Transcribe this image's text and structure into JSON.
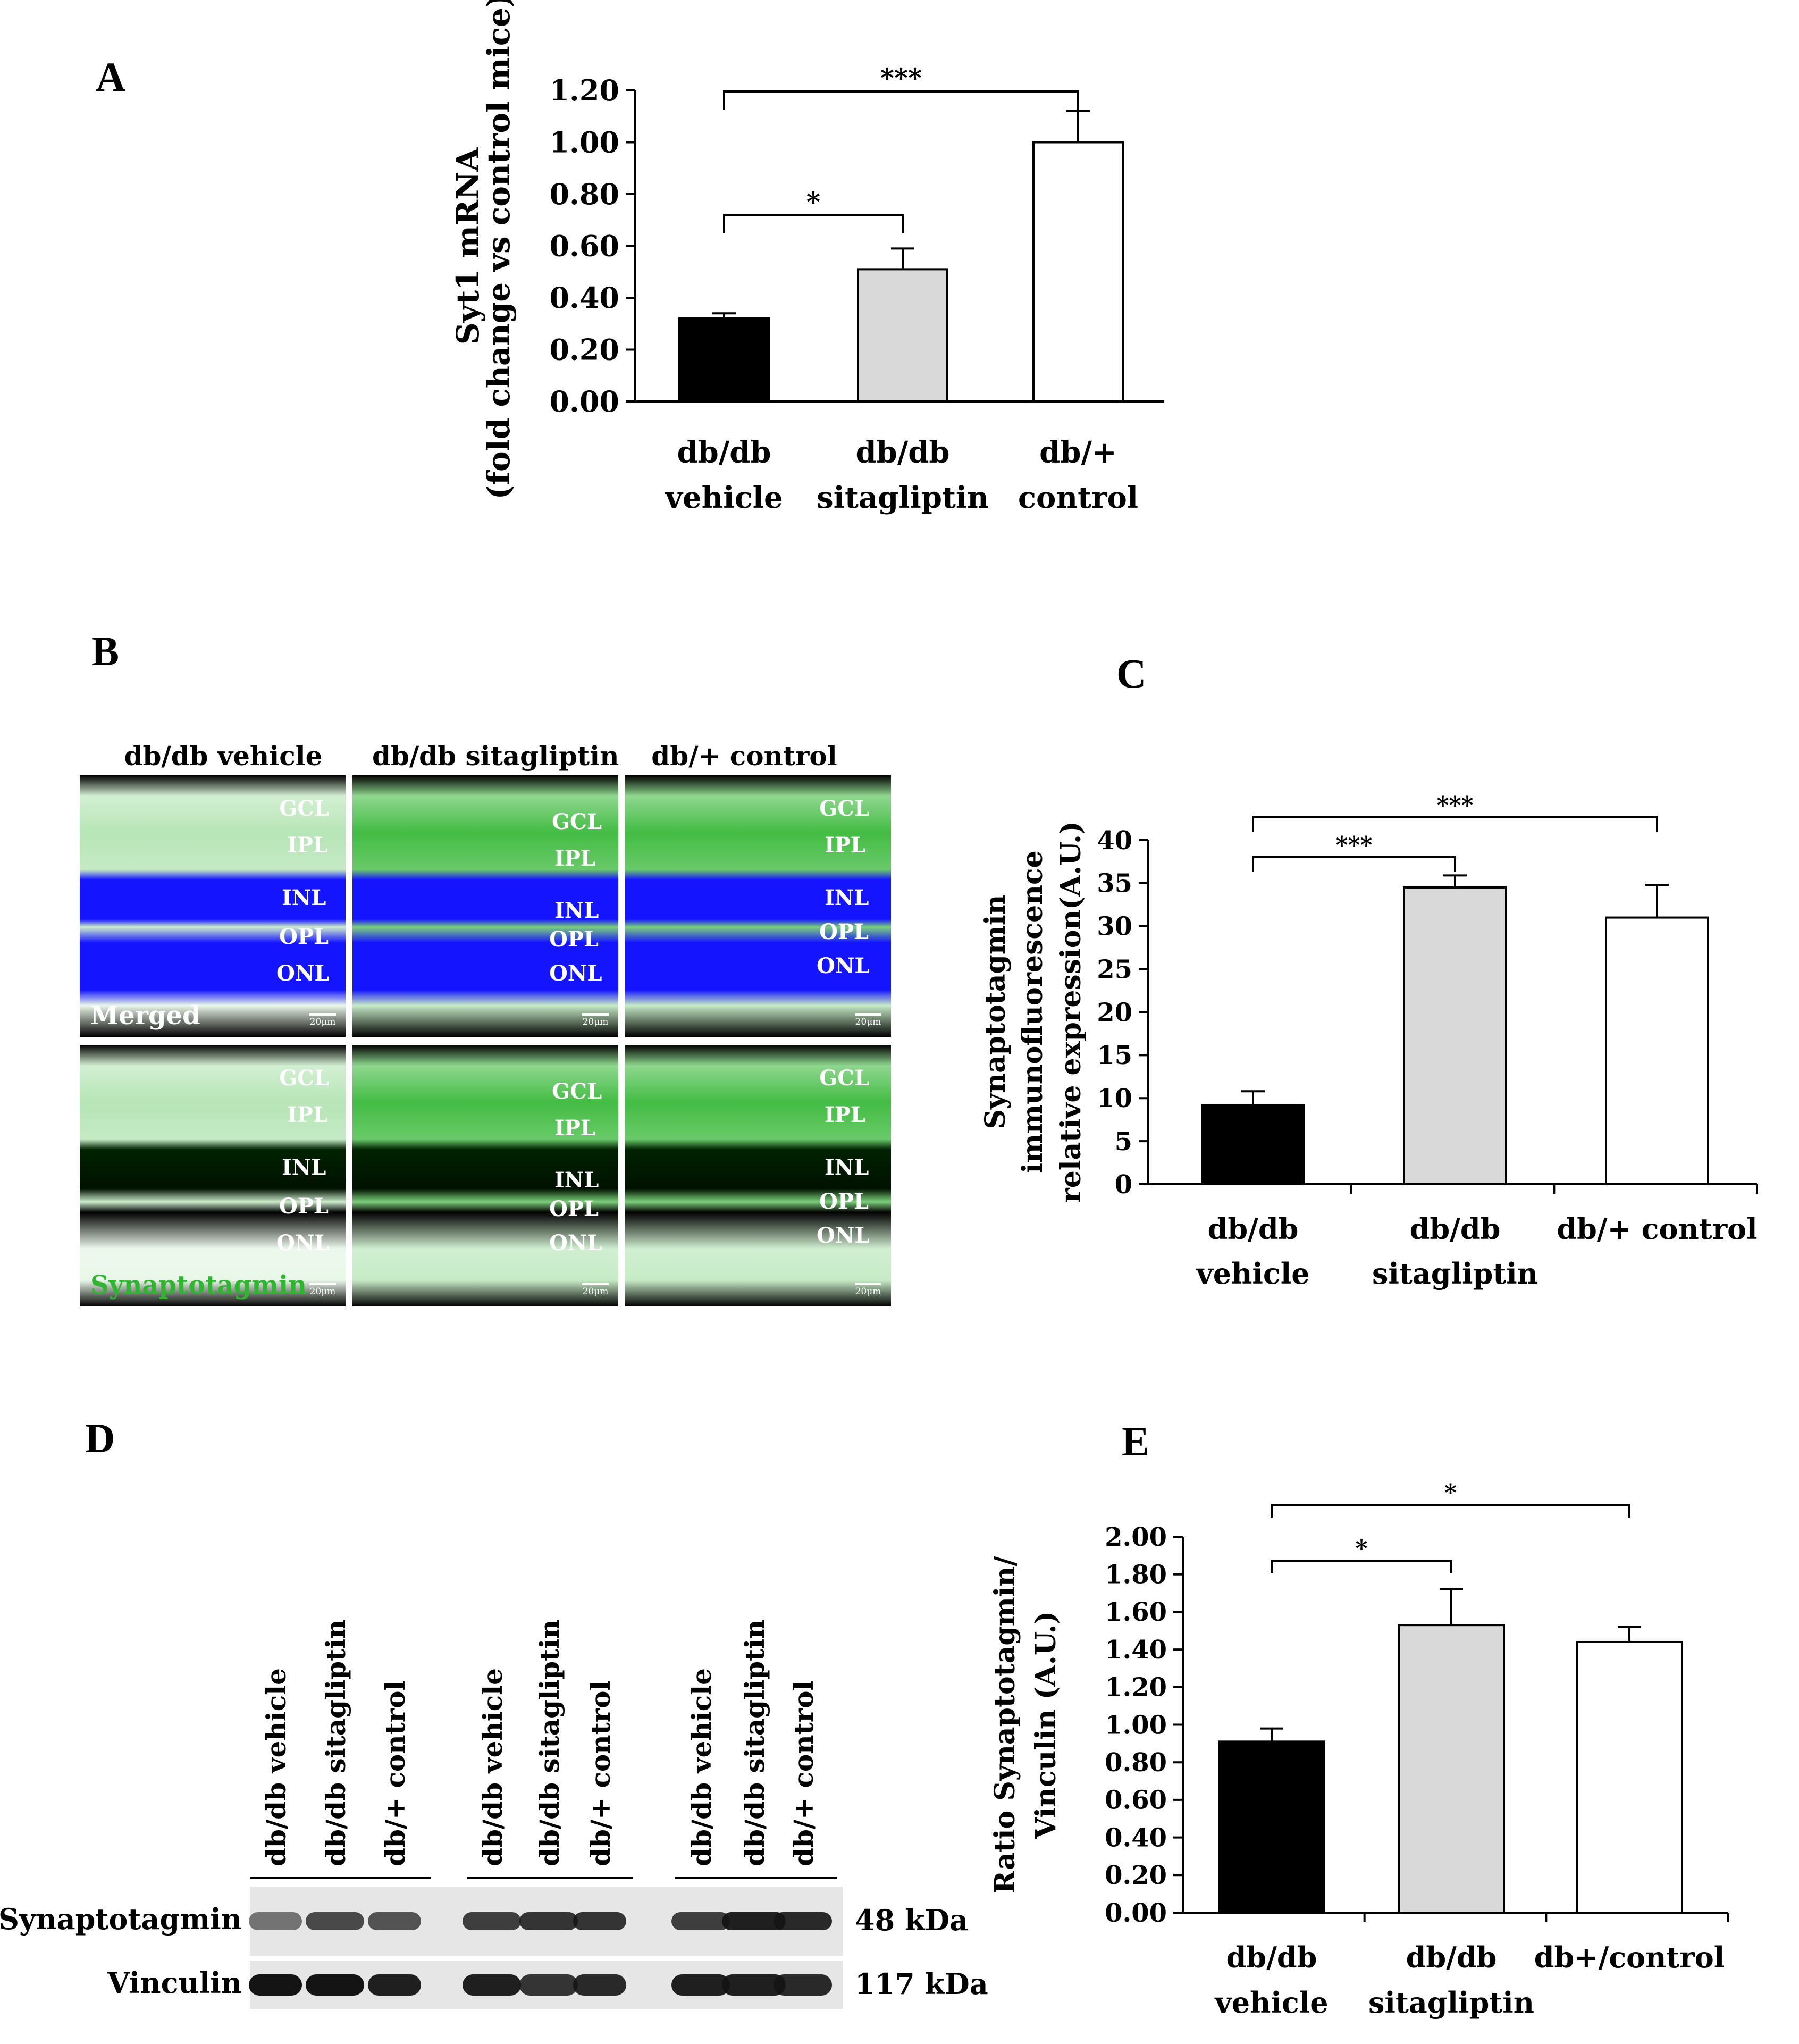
{
  "panels": {
    "A": "A",
    "B": "B",
    "C": "C",
    "D": "D",
    "E": "E"
  },
  "chart_data": [
    {
      "id": "A",
      "type": "bar",
      "ylabel_line1": "Syt1 mRNA",
      "ylabel_line2": "(fold change vs control mice)",
      "categories": [
        [
          "db/db",
          "vehicle"
        ],
        [
          "db/db",
          "sitagliptin"
        ],
        [
          "db/+",
          "control"
        ]
      ],
      "values": [
        0.32,
        0.51,
        1.0
      ],
      "errors": [
        0.02,
        0.08,
        0.12
      ],
      "colors": [
        "#000000",
        "#d9d9d9",
        "#ffffff"
      ],
      "ylim": [
        0,
        1.2
      ],
      "yticks": [
        "0.00",
        "0.20",
        "0.40",
        "0.60",
        "0.80",
        "1.00",
        "1.20"
      ],
      "significance": [
        {
          "from": 0,
          "to": 1,
          "label": "*"
        },
        {
          "from": 0,
          "to": 2,
          "label": "***"
        }
      ]
    },
    {
      "id": "C",
      "type": "bar",
      "ylabel_line1": "Synaptotagmin",
      "ylabel_line2": "immunofluorescence",
      "ylabel_line3": "relative expression(A.U.)",
      "categories": [
        [
          "db/db",
          "vehicle"
        ],
        [
          "db/db",
          "sitagliptin"
        ],
        [
          "db/+ control",
          ""
        ]
      ],
      "values": [
        9.2,
        34.5,
        31.0
      ],
      "errors": [
        1.6,
        1.4,
        3.8
      ],
      "colors": [
        "#000000",
        "#d9d9d9",
        "#ffffff"
      ],
      "ylim": [
        0,
        40
      ],
      "yticks": [
        "0",
        "5",
        "10",
        "15",
        "20",
        "25",
        "30",
        "35",
        "40"
      ],
      "significance": [
        {
          "from": 0,
          "to": 1,
          "label": "***"
        },
        {
          "from": 0,
          "to": 2,
          "label": "***"
        }
      ]
    },
    {
      "id": "E",
      "type": "bar",
      "ylabel_line1": "Ratio Synaptotagmin/",
      "ylabel_line2": "Vinculin (A.U.)",
      "categories": [
        [
          "db/db",
          "vehicle"
        ],
        [
          "db/db",
          "sitagliptin"
        ],
        [
          "db+/control",
          ""
        ]
      ],
      "values": [
        0.91,
        1.53,
        1.44
      ],
      "errors": [
        0.07,
        0.19,
        0.08
      ],
      "colors": [
        "#000000",
        "#d9d9d9",
        "#ffffff"
      ],
      "ylim": [
        0,
        2.0
      ],
      "yticks": [
        "0.00",
        "0.20",
        "0.40",
        "0.60",
        "0.80",
        "1.00",
        "1.20",
        "1.40",
        "1.60",
        "1.80",
        "2.00"
      ],
      "significance": [
        {
          "from": 0,
          "to": 1,
          "label": "*"
        },
        {
          "from": 0,
          "to": 2,
          "label": "*"
        }
      ]
    }
  ],
  "micrographs": {
    "columns": [
      "db/db vehicle",
      "db/db sitagliptin",
      "db/+ control"
    ],
    "rows": [
      "Merged",
      "Synaptotagmin"
    ],
    "layers": [
      "GCL",
      "IPL",
      "INL",
      "OPL",
      "ONL"
    ],
    "scale": "20μm",
    "colors": {
      "nuclei": "#1414ff",
      "synaptotagmin": "#2fb52f"
    }
  },
  "blot": {
    "lanes": [
      "db/db vehicle",
      "db/db sitagliptin",
      "db/+ control",
      "db/db vehicle",
      "db/db sitagliptin",
      "db/+ control",
      "db/db vehicle",
      "db/db sitagliptin",
      "db/+ control"
    ],
    "rows": [
      {
        "name": "Synaptotagmin",
        "kda": "48 kDa"
      },
      {
        "name": "Vinculin",
        "kda": "117 kDa"
      }
    ]
  }
}
